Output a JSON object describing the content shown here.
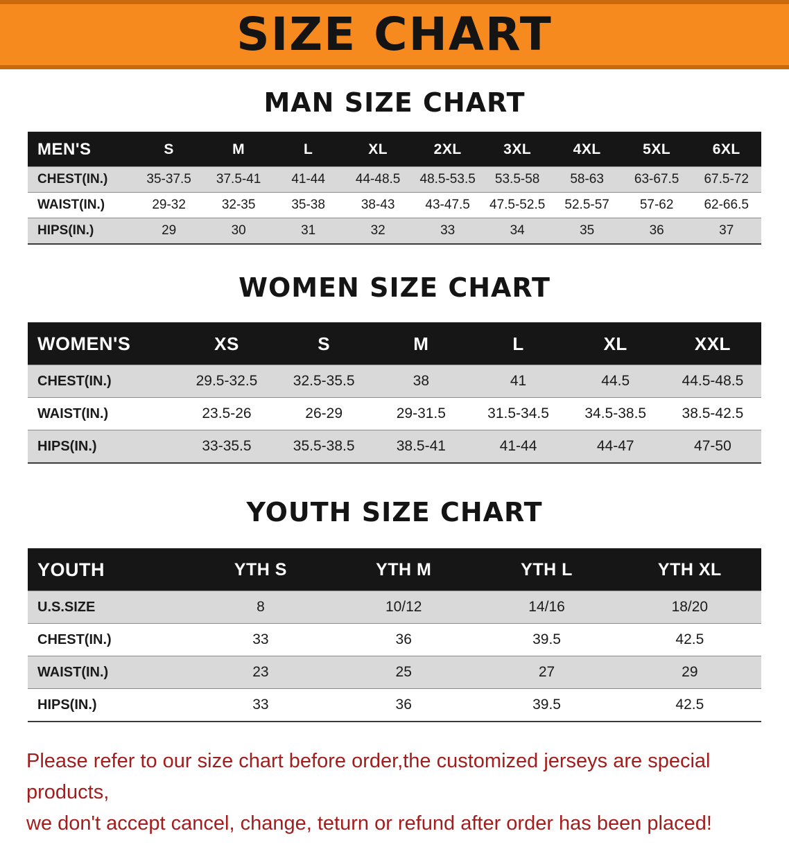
{
  "banner": {
    "title": "SIZE CHART",
    "bg_color": "#f68a1f",
    "edge_color": "#c96a0c",
    "text_color": "#141414"
  },
  "sections": [
    {
      "id": "men",
      "heading": "MAN SIZE CHART",
      "table": {
        "header": [
          "MEN'S",
          "S",
          "M",
          "L",
          "XL",
          "2XL",
          "3XL",
          "4XL",
          "5XL",
          "6XL"
        ],
        "rows": [
          [
            "CHEST(IN.)",
            "35-37.5",
            "37.5-41",
            "41-44",
            "44-48.5",
            "48.5-53.5",
            "53.5-58",
            "58-63",
            "63-67.5",
            "67.5-72"
          ],
          [
            "WAIST(IN.)",
            "29-32",
            "32-35",
            "35-38",
            "38-43",
            "43-47.5",
            "47.5-52.5",
            "52.5-57",
            "57-62",
            "62-66.5"
          ],
          [
            "HIPS(IN.)",
            "29",
            "30",
            "31",
            "32",
            "33",
            "34",
            "35",
            "36",
            "37"
          ]
        ]
      }
    },
    {
      "id": "women",
      "heading": "WOMEN SIZE CHART",
      "table": {
        "header": [
          "WOMEN'S",
          "XS",
          "S",
          "M",
          "L",
          "XL",
          "XXL"
        ],
        "rows": [
          [
            "CHEST(IN.)",
            "29.5-32.5",
            "32.5-35.5",
            "38",
            "41",
            "44.5",
            "44.5-48.5"
          ],
          [
            "WAIST(IN.)",
            "23.5-26",
            "26-29",
            "29-31.5",
            "31.5-34.5",
            "34.5-38.5",
            "38.5-42.5"
          ],
          [
            "HIPS(IN.)",
            "33-35.5",
            "35.5-38.5",
            "38.5-41",
            "41-44",
            "44-47",
            "47-50"
          ]
        ]
      }
    },
    {
      "id": "youth",
      "heading": "YOUTH SIZE CHART",
      "table": {
        "header": [
          "YOUTH",
          "YTH S",
          "YTH M",
          "YTH L",
          "YTH XL"
        ],
        "rows": [
          [
            "U.S.SIZE",
            "8",
            "10/12",
            "14/16",
            "18/20"
          ],
          [
            "CHEST(IN.)",
            "33",
            "36",
            "39.5",
            "42.5"
          ],
          [
            "WAIST(IN.)",
            "23",
            "25",
            "27",
            "29"
          ],
          [
            "HIPS(IN.)",
            "33",
            "36",
            "39.5",
            "42.5"
          ]
        ]
      }
    }
  ],
  "disclaimer": {
    "color": "#a31d1d",
    "lines": [
      "Please refer to our size chart before order,the customized jerseys are special products,",
      "we don't accept cancel, change, teturn or refund after order has been placed!"
    ]
  }
}
